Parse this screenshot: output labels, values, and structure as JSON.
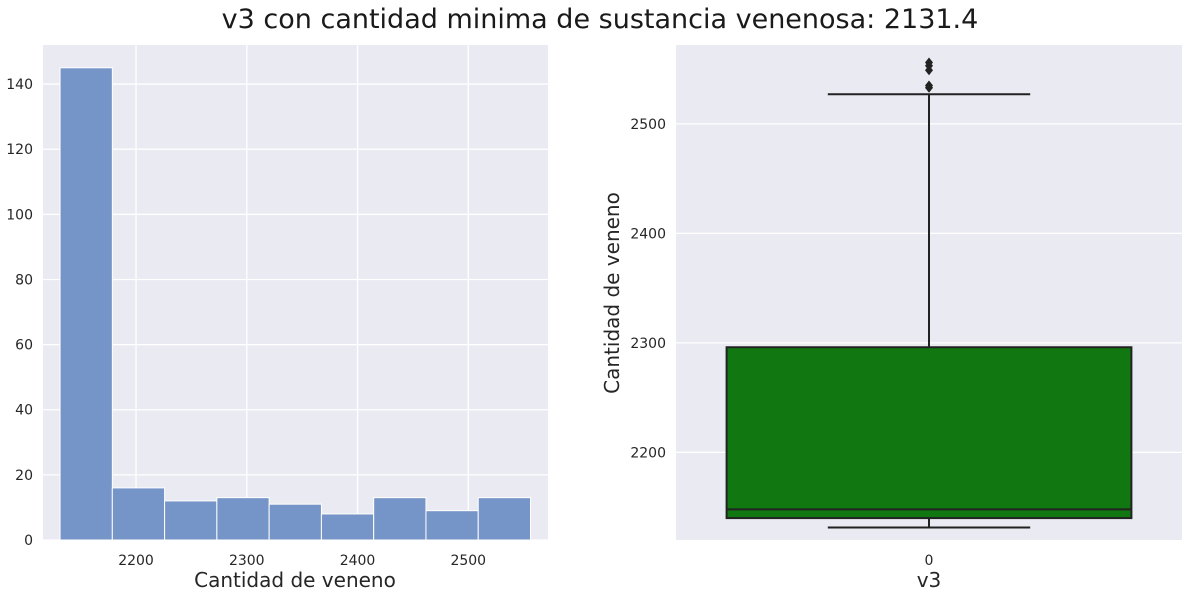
{
  "figure_title": "v3 con cantidad minima de sustancia venenosa: 2131.4",
  "chart_data": [
    {
      "type": "bar",
      "subtype": "histogram",
      "title": "",
      "xlabel": "Cantidad de veneno",
      "ylabel": "",
      "bin_edges": [
        2131.4,
        2178.6,
        2225.8,
        2273.0,
        2320.2,
        2367.4,
        2414.6,
        2461.8,
        2509.0,
        2556.2
      ],
      "values": [
        145,
        16,
        12,
        13,
        11,
        8,
        13,
        9,
        13
      ],
      "xlim": [
        2116,
        2572
      ],
      "ylim": [
        0,
        152
      ],
      "xticks": [
        2200,
        2300,
        2400,
        2500
      ],
      "yticks": [
        0,
        20,
        40,
        60,
        80,
        100,
        120,
        140
      ],
      "bar_color": "#6f8fc4",
      "grid": true
    },
    {
      "type": "box",
      "title": "",
      "xlabel": "v3",
      "ylabel": "Cantidad de veneno",
      "categories": [
        "0"
      ],
      "box": {
        "whisker_low": 2131.4,
        "q1": 2140,
        "median": 2148,
        "q3": 2296,
        "whisker_high": 2527
      },
      "outliers": [
        2533,
        2535,
        2549,
        2553,
        2556
      ],
      "ylim": [
        2120,
        2572
      ],
      "yticks": [
        2200,
        2300,
        2400,
        2500
      ],
      "box_color": "#117711",
      "grid": true
    }
  ],
  "colors": {
    "panel_bg": "#eaeaf2",
    "grid": "#ffffff",
    "box_edge": "#222222"
  }
}
